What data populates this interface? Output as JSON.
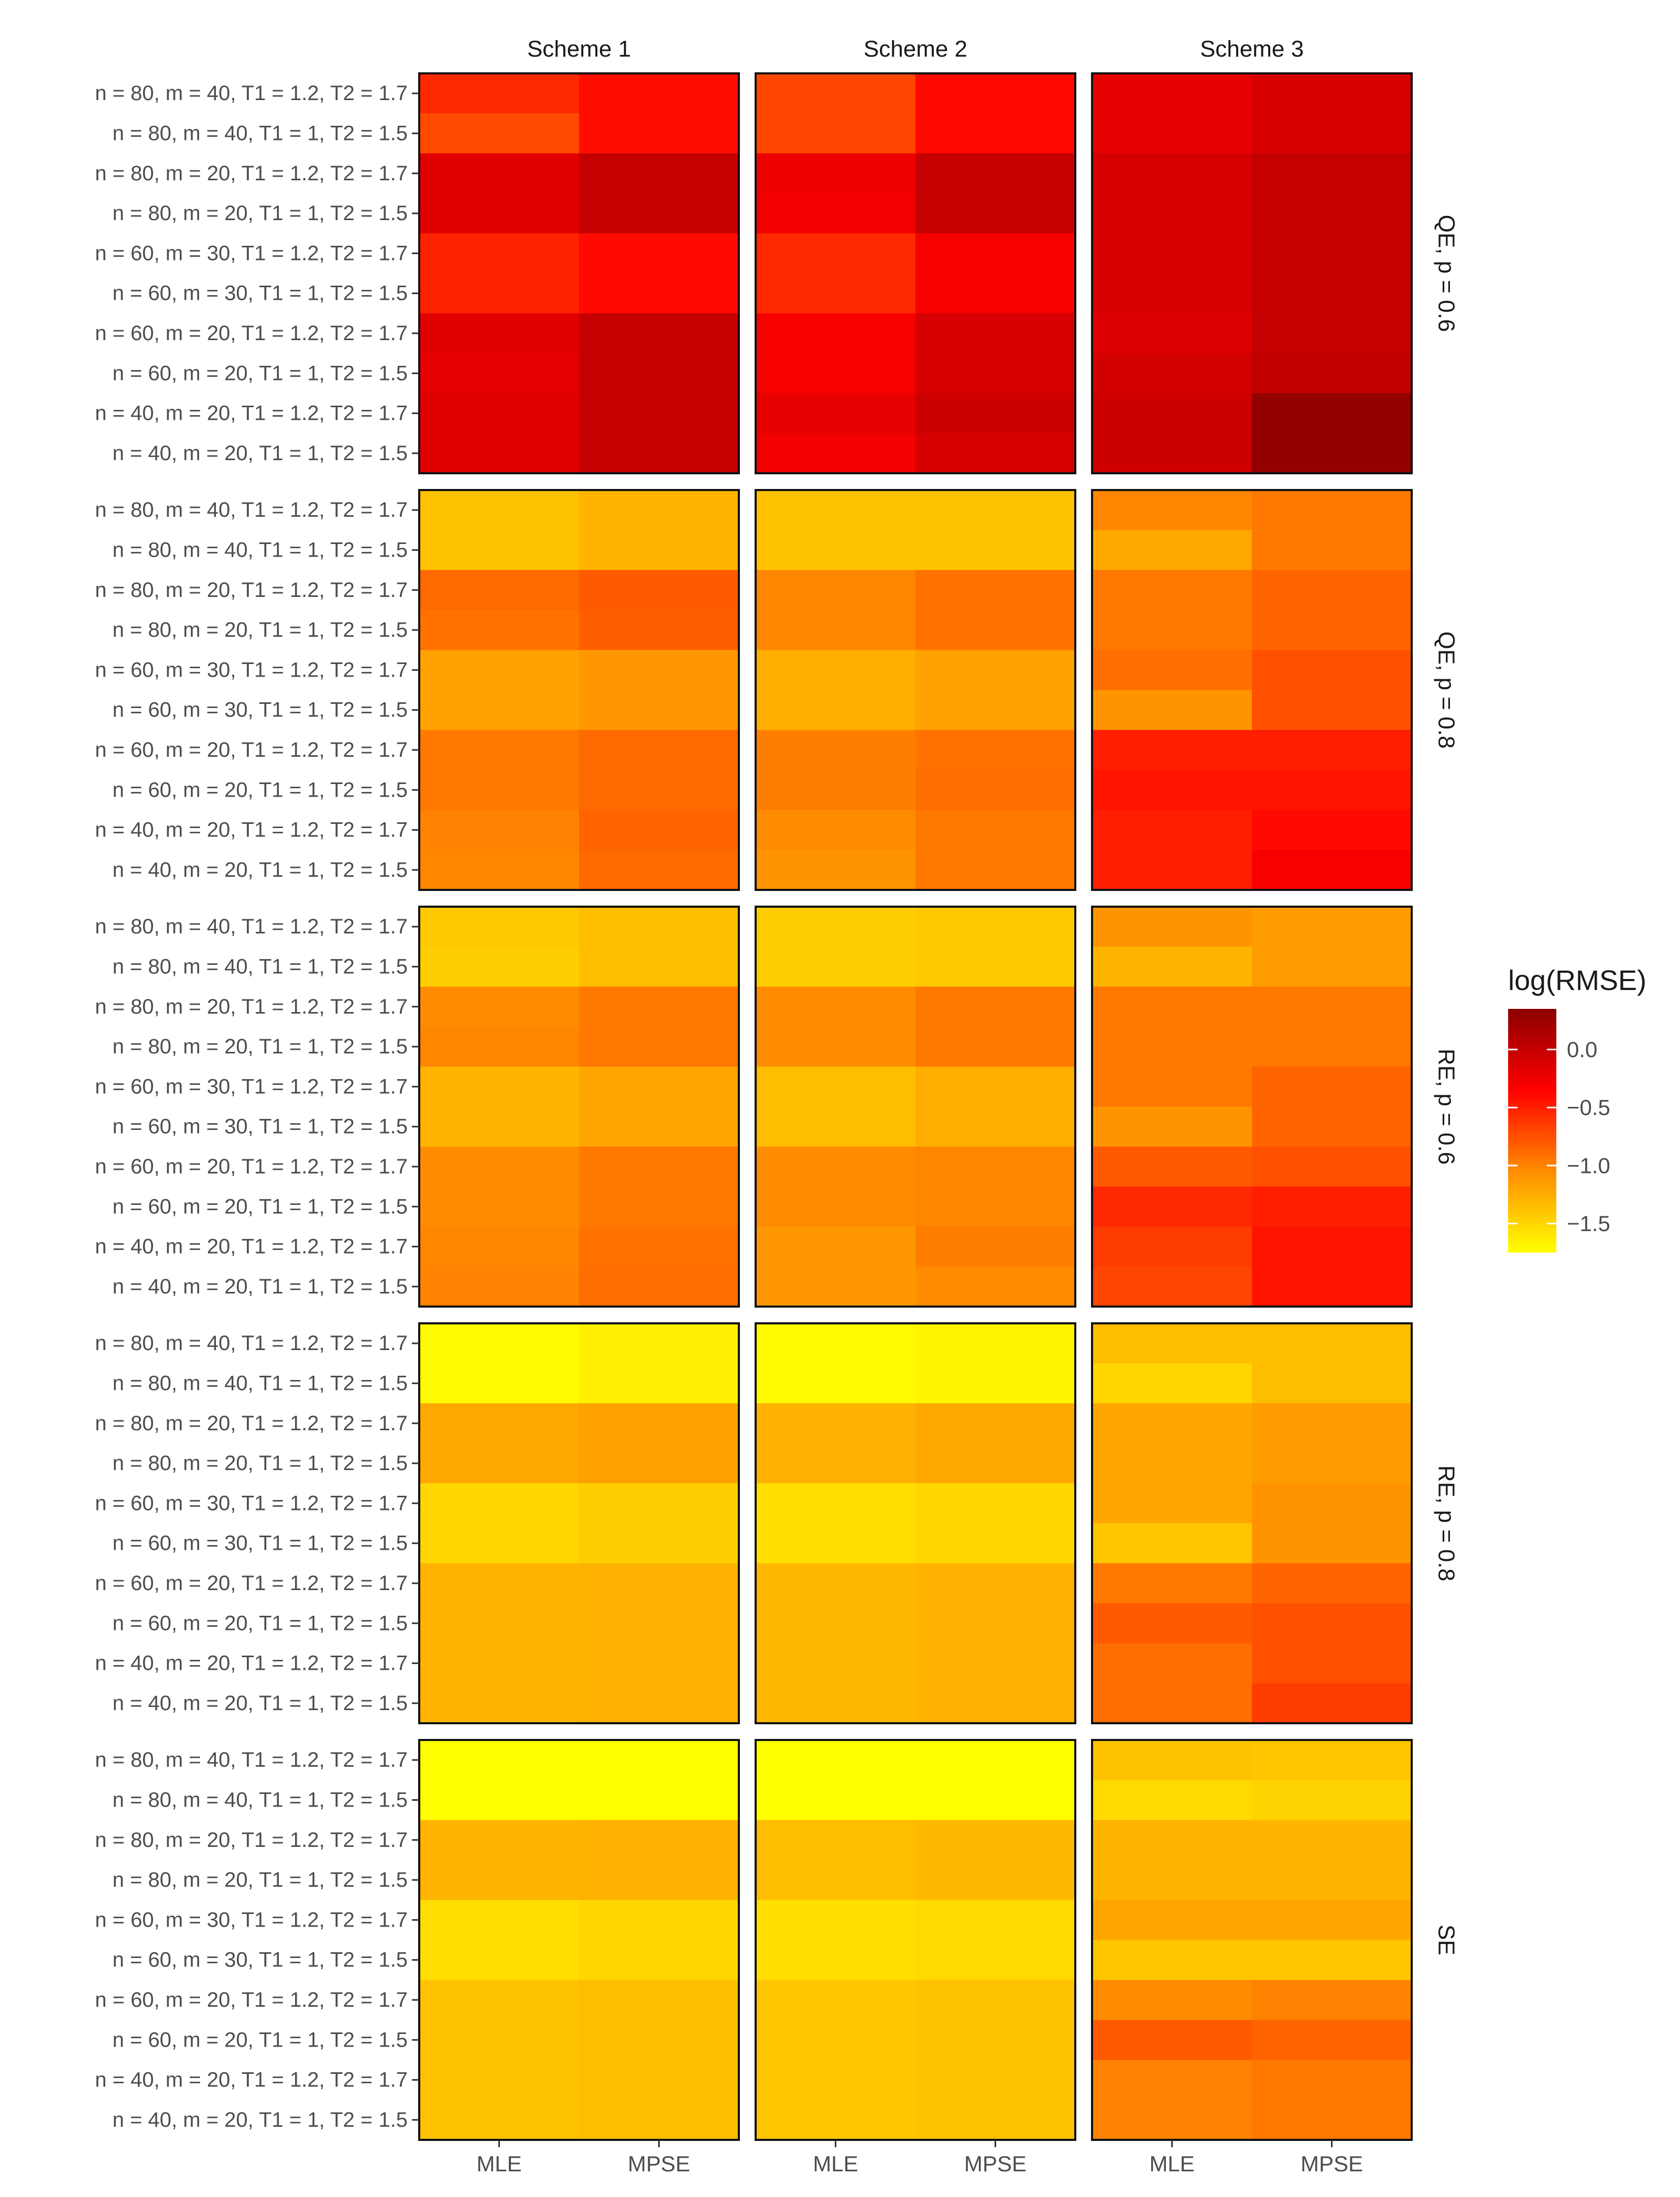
{
  "chart_data": {
    "type": "heatmap",
    "title": "",
    "xlabel": "",
    "ylabel": "",
    "x_categories": [
      "MLE",
      "MPSE"
    ],
    "column_facets": [
      "Scheme 1",
      "Scheme 2",
      "Scheme 3"
    ],
    "row_facets": [
      "QE, p = 0.6",
      "QE, p = 0.8",
      "RE, p = 0.6",
      "RE, p = 0.8",
      "SE"
    ],
    "y_categories": [
      "n = 80, m = 40, T1 = 1.2, T2 = 1.7",
      "n = 80, m = 40, T1 = 1, T2 = 1.5",
      "n = 80, m = 20, T1 = 1.2, T2 = 1.7",
      "n = 80, m = 20, T1 = 1, T2 = 1.5",
      "n = 60, m = 30, T1 = 1.2, T2 = 1.7",
      "n = 60, m = 30, T1 = 1, T2 = 1.5",
      "n = 60, m = 20, T1 = 1.2, T2 = 1.7",
      "n = 60, m = 20, T1 = 1, T2 = 1.5",
      "n = 40, m = 20, T1 = 1.2, T2 = 1.7",
      "n = 40, m = 20, T1 = 1, T2 = 1.5"
    ],
    "legend": {
      "title": "log(RMSE)",
      "ticks": [
        0.0,
        -0.5,
        -1.0,
        -1.5
      ],
      "tick_labels": [
        "0.0",
        "−0.5",
        "−1.0",
        "−1.5"
      ],
      "min": -1.75,
      "max": 0.35,
      "colors": [
        "#ffff00",
        "#ff8c00",
        "#ff0000",
        "#8b0000"
      ],
      "placement": "right"
    },
    "values": [
      [
        [
          [
            -0.55,
            -0.42
          ],
          [
            -0.72,
            -0.42
          ],
          [
            -0.17,
            0.0
          ],
          [
            -0.17,
            0.0
          ],
          [
            -0.52,
            -0.4
          ],
          [
            -0.52,
            -0.4
          ],
          [
            -0.17,
            0.0
          ],
          [
            -0.2,
            0.0
          ],
          [
            -0.17,
            0.0
          ],
          [
            -0.17,
            0.0
          ]
        ],
        [
          [
            -0.7,
            -0.4
          ],
          [
            -0.7,
            -0.4
          ],
          [
            -0.25,
            0.0
          ],
          [
            -0.28,
            0.0
          ],
          [
            -0.55,
            -0.3
          ],
          [
            -0.55,
            -0.3
          ],
          [
            -0.3,
            -0.1
          ],
          [
            -0.3,
            -0.1
          ],
          [
            -0.2,
            -0.05
          ],
          [
            -0.28,
            -0.1
          ]
        ],
        [
          [
            -0.2,
            -0.1
          ],
          [
            -0.2,
            -0.1
          ],
          [
            -0.1,
            0.0
          ],
          [
            -0.1,
            0.0
          ],
          [
            -0.1,
            0.0
          ],
          [
            -0.1,
            0.0
          ],
          [
            -0.15,
            0.0
          ],
          [
            -0.08,
            0.02
          ],
          [
            -0.05,
            0.3
          ],
          [
            -0.05,
            0.3
          ]
        ]
      ],
      [
        [
          [
            -1.38,
            -1.3
          ],
          [
            -1.38,
            -1.3
          ],
          [
            -0.88,
            -0.8
          ],
          [
            -0.92,
            -0.82
          ],
          [
            -1.18,
            -1.12
          ],
          [
            -1.18,
            -1.12
          ],
          [
            -0.95,
            -0.88
          ],
          [
            -0.95,
            -0.88
          ],
          [
            -1.0,
            -0.85
          ],
          [
            -1.02,
            -0.88
          ]
        ],
        [
          [
            -1.38,
            -1.38
          ],
          [
            -1.38,
            -1.38
          ],
          [
            -1.02,
            -0.92
          ],
          [
            -1.02,
            -0.92
          ],
          [
            -1.25,
            -1.18
          ],
          [
            -1.25,
            -1.18
          ],
          [
            -0.98,
            -0.92
          ],
          [
            -0.98,
            -0.9
          ],
          [
            -1.05,
            -0.95
          ],
          [
            -1.1,
            -0.95
          ]
        ],
        [
          [
            -1.02,
            -0.95
          ],
          [
            -1.22,
            -0.95
          ],
          [
            -0.95,
            -0.85
          ],
          [
            -0.95,
            -0.85
          ],
          [
            -0.9,
            -0.75
          ],
          [
            -1.1,
            -0.75
          ],
          [
            -0.5,
            -0.5
          ],
          [
            -0.45,
            -0.45
          ],
          [
            -0.5,
            -0.4
          ],
          [
            -0.5,
            -0.3
          ]
        ]
      ],
      [
        [
          [
            -1.42,
            -1.35
          ],
          [
            -1.45,
            -1.35
          ],
          [
            -1.05,
            -0.95
          ],
          [
            -1.02,
            -0.95
          ],
          [
            -1.3,
            -1.2
          ],
          [
            -1.3,
            -1.2
          ],
          [
            -1.05,
            -0.95
          ],
          [
            -1.05,
            -0.95
          ],
          [
            -1.02,
            -0.92
          ],
          [
            -1.0,
            -0.9
          ]
        ],
        [
          [
            -1.45,
            -1.42
          ],
          [
            -1.45,
            -1.42
          ],
          [
            -1.05,
            -0.95
          ],
          [
            -1.05,
            -0.95
          ],
          [
            -1.35,
            -1.25
          ],
          [
            -1.35,
            -1.25
          ],
          [
            -1.05,
            -1.02
          ],
          [
            -1.05,
            -1.02
          ],
          [
            -1.12,
            -0.98
          ],
          [
            -1.12,
            -1.05
          ]
        ],
        [
          [
            -1.1,
            -1.15
          ],
          [
            -1.3,
            -1.15
          ],
          [
            -0.95,
            -0.95
          ],
          [
            -0.95,
            -0.95
          ],
          [
            -0.95,
            -0.85
          ],
          [
            -1.1,
            -0.85
          ],
          [
            -0.8,
            -0.75
          ],
          [
            -0.55,
            -0.5
          ],
          [
            -0.65,
            -0.45
          ],
          [
            -0.7,
            -0.45
          ]
        ]
      ],
      [
        [
          [
            -1.72,
            -1.65
          ],
          [
            -1.72,
            -1.65
          ],
          [
            -1.22,
            -1.18
          ],
          [
            -1.22,
            -1.18
          ],
          [
            -1.5,
            -1.45
          ],
          [
            -1.5,
            -1.45
          ],
          [
            -1.3,
            -1.28
          ],
          [
            -1.3,
            -1.28
          ],
          [
            -1.3,
            -1.28
          ],
          [
            -1.3,
            -1.28
          ]
        ],
        [
          [
            -1.72,
            -1.68
          ],
          [
            -1.72,
            -1.68
          ],
          [
            -1.28,
            -1.22
          ],
          [
            -1.28,
            -1.22
          ],
          [
            -1.55,
            -1.5
          ],
          [
            -1.55,
            -1.5
          ],
          [
            -1.32,
            -1.28
          ],
          [
            -1.32,
            -1.28
          ],
          [
            -1.32,
            -1.28
          ],
          [
            -1.32,
            -1.28
          ]
        ],
        [
          [
            -1.35,
            -1.35
          ],
          [
            -1.5,
            -1.35
          ],
          [
            -1.2,
            -1.15
          ],
          [
            -1.2,
            -1.15
          ],
          [
            -1.2,
            -1.1
          ],
          [
            -1.4,
            -1.1
          ],
          [
            -0.95,
            -0.85
          ],
          [
            -0.8,
            -0.75
          ],
          [
            -0.9,
            -0.75
          ],
          [
            -0.9,
            -0.65
          ]
        ]
      ],
      [
        [
          [
            -1.82,
            -1.8
          ],
          [
            -1.82,
            -1.8
          ],
          [
            -1.3,
            -1.28
          ],
          [
            -1.3,
            -1.28
          ],
          [
            -1.55,
            -1.5
          ],
          [
            -1.55,
            -1.5
          ],
          [
            -1.38,
            -1.35
          ],
          [
            -1.38,
            -1.35
          ],
          [
            -1.38,
            -1.35
          ],
          [
            -1.38,
            -1.35
          ]
        ],
        [
          [
            -1.82,
            -1.8
          ],
          [
            -1.82,
            -1.8
          ],
          [
            -1.35,
            -1.32
          ],
          [
            -1.35,
            -1.32
          ],
          [
            -1.55,
            -1.52
          ],
          [
            -1.55,
            -1.52
          ],
          [
            -1.4,
            -1.38
          ],
          [
            -1.4,
            -1.38
          ],
          [
            -1.4,
            -1.38
          ],
          [
            -1.4,
            -1.38
          ]
        ],
        [
          [
            -1.38,
            -1.4
          ],
          [
            -1.52,
            -1.48
          ],
          [
            -1.3,
            -1.3
          ],
          [
            -1.3,
            -1.3
          ],
          [
            -1.2,
            -1.2
          ],
          [
            -1.4,
            -1.4
          ],
          [
            -1.05,
            -1.0
          ],
          [
            -0.8,
            -0.85
          ],
          [
            -1.0,
            -0.95
          ],
          [
            -1.0,
            -0.95
          ]
        ]
      ]
    ]
  }
}
